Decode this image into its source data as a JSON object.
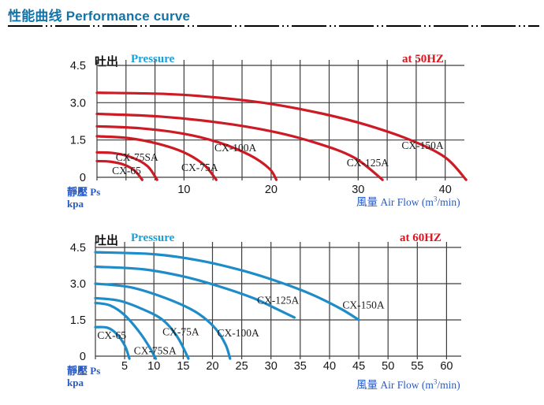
{
  "title": "性能曲线 Performance curve",
  "chart_data": [
    {
      "type": "line",
      "pressure_label_zh": "吐出",
      "pressure_label_en": "Pressure",
      "freq_label": "at  50HZ",
      "ylabel_zh": "靜壓 Ps",
      "ylabel_unit": "kpa",
      "xlabel_pre": "風量  Air Flow (m",
      "xlabel_sup": "3",
      "xlabel_post": "/min)",
      "xlim": [
        0,
        42.2
      ],
      "ylim": [
        0,
        4.5
      ],
      "x_ticks": [
        10,
        20,
        30,
        40
      ],
      "x_grid_step": 3.3333,
      "y_ticks": [
        "0",
        "1.5",
        "3.0",
        "4.5"
      ],
      "y_tick_values": [
        0,
        1.5,
        3.0,
        4.5
      ],
      "grid": true,
      "curve_color": "#cc1b24",
      "series": [
        {
          "name": "CX-65",
          "points": [
            [
              0,
              0.65
            ],
            [
              1.5,
              0.63
            ],
            [
              3,
              0.52
            ],
            [
              4.3,
              0.28
            ],
            [
              5.2,
              -0.1
            ]
          ],
          "label_x": 3.4,
          "label_y": 0.25
        },
        {
          "name": "CX-75SA",
          "points": [
            [
              0,
              1.0
            ],
            [
              2,
              0.97
            ],
            [
              4,
              0.8
            ],
            [
              5.8,
              0.45
            ],
            [
              6.9,
              -0.1
            ]
          ],
          "label_x": 4.6,
          "label_y": 0.8
        },
        {
          "name": "CX-75A",
          "points": [
            [
              0,
              1.65
            ],
            [
              3.5,
              1.58
            ],
            [
              7,
              1.35
            ],
            [
              10,
              1.0
            ],
            [
              12.3,
              0.5
            ],
            [
              13.7,
              -0.1
            ]
          ],
          "label_x": 11.8,
          "label_y": 0.38
        },
        {
          "name": "CX-100A",
          "points": [
            [
              0,
              2.05
            ],
            [
              5,
              1.97
            ],
            [
              10,
              1.75
            ],
            [
              14,
              1.4
            ],
            [
              17.5,
              0.9
            ],
            [
              19.8,
              0.35
            ],
            [
              20.6,
              -0.1
            ]
          ],
          "label_x": 15.9,
          "label_y": 1.18
        },
        {
          "name": "CX-125A",
          "points": [
            [
              0,
              2.55
            ],
            [
              7,
              2.45
            ],
            [
              14,
              2.2
            ],
            [
              20,
              1.85
            ],
            [
              25,
              1.4
            ],
            [
              29.5,
              0.8
            ],
            [
              32.8,
              -0.1
            ]
          ],
          "label_x": 31.1,
          "label_y": 0.57
        },
        {
          "name": "CX-150A",
          "points": [
            [
              0,
              3.4
            ],
            [
              8,
              3.35
            ],
            [
              14,
              3.2
            ],
            [
              20,
              2.95
            ],
            [
              26,
              2.55
            ],
            [
              31,
              2.1
            ],
            [
              36,
              1.5
            ],
            [
              40,
              0.8
            ],
            [
              42.4,
              -0.1
            ]
          ],
          "label_x": 37.4,
          "label_y": 1.26
        }
      ]
    },
    {
      "type": "line",
      "pressure_label_zh": "吐出",
      "pressure_label_en": "Pressure",
      "freq_label": "at  60HZ",
      "ylabel_zh": "靜壓 Ps",
      "ylabel_unit": "kpa",
      "xlabel_pre": "風量  Air Flow (m",
      "xlabel_sup": "3",
      "xlabel_post": "/min)",
      "xlim": [
        0,
        62.5
      ],
      "ylim": [
        0,
        4.5
      ],
      "x_ticks": [
        5,
        10,
        15,
        20,
        25,
        30,
        35,
        40,
        45,
        50,
        55,
        60
      ],
      "x_grid_step": 5,
      "y_ticks": [
        "0",
        "1.5",
        "3.0",
        "4.5"
      ],
      "y_tick_values": [
        0,
        1.5,
        3.0,
        4.5
      ],
      "grid": true,
      "curve_color": "#1e8cc8",
      "series": [
        {
          "name": "CX-65",
          "points": [
            [
              0,
              1.2
            ],
            [
              2,
              1.18
            ],
            [
              3.5,
              0.95
            ],
            [
              5,
              0.45
            ],
            [
              5.8,
              -0.1
            ]
          ],
          "label_x": 2.8,
          "label_y": 0.85
        },
        {
          "name": "CX-75SA",
          "points": [
            [
              0,
              2.2
            ],
            [
              2.5,
              2.1
            ],
            [
              5,
              1.7
            ],
            [
              7.5,
              1.0
            ],
            [
              9.3,
              0.35
            ],
            [
              10.3,
              -0.1
            ]
          ],
          "label_x": 10.2,
          "label_y": 0.22
        },
        {
          "name": "CX-75A",
          "points": [
            [
              0,
              2.4
            ],
            [
              4,
              2.3
            ],
            [
              8,
              1.95
            ],
            [
              11.5,
              1.5
            ],
            [
              14,
              0.8
            ],
            [
              15.9,
              -0.1
            ]
          ],
          "label_x": 14.6,
          "label_y": 1.0
        },
        {
          "name": "CX-100A",
          "points": [
            [
              0,
              3.0
            ],
            [
              6,
              2.85
            ],
            [
              12,
              2.4
            ],
            [
              17,
              1.85
            ],
            [
              20.3,
              1.2
            ],
            [
              22.2,
              0.5
            ],
            [
              23,
              -0.1
            ]
          ],
          "label_x": 24.4,
          "label_y": 0.95
        },
        {
          "name": "CX-125A",
          "points": [
            [
              0,
              3.7
            ],
            [
              8,
              3.6
            ],
            [
              15,
              3.3
            ],
            [
              21,
              2.9
            ],
            [
              27,
              2.4
            ],
            [
              31,
              1.95
            ],
            [
              34,
              1.6
            ]
          ],
          "label_x": 31.2,
          "label_y": 2.3
        },
        {
          "name": "CX-150A",
          "points": [
            [
              0,
              4.3
            ],
            [
              10,
              4.22
            ],
            [
              18,
              3.95
            ],
            [
              25,
              3.55
            ],
            [
              31,
              3.1
            ],
            [
              37,
              2.55
            ],
            [
              42,
              1.95
            ],
            [
              45,
              1.5
            ]
          ],
          "label_x": 45.8,
          "label_y": 2.1
        }
      ]
    }
  ]
}
